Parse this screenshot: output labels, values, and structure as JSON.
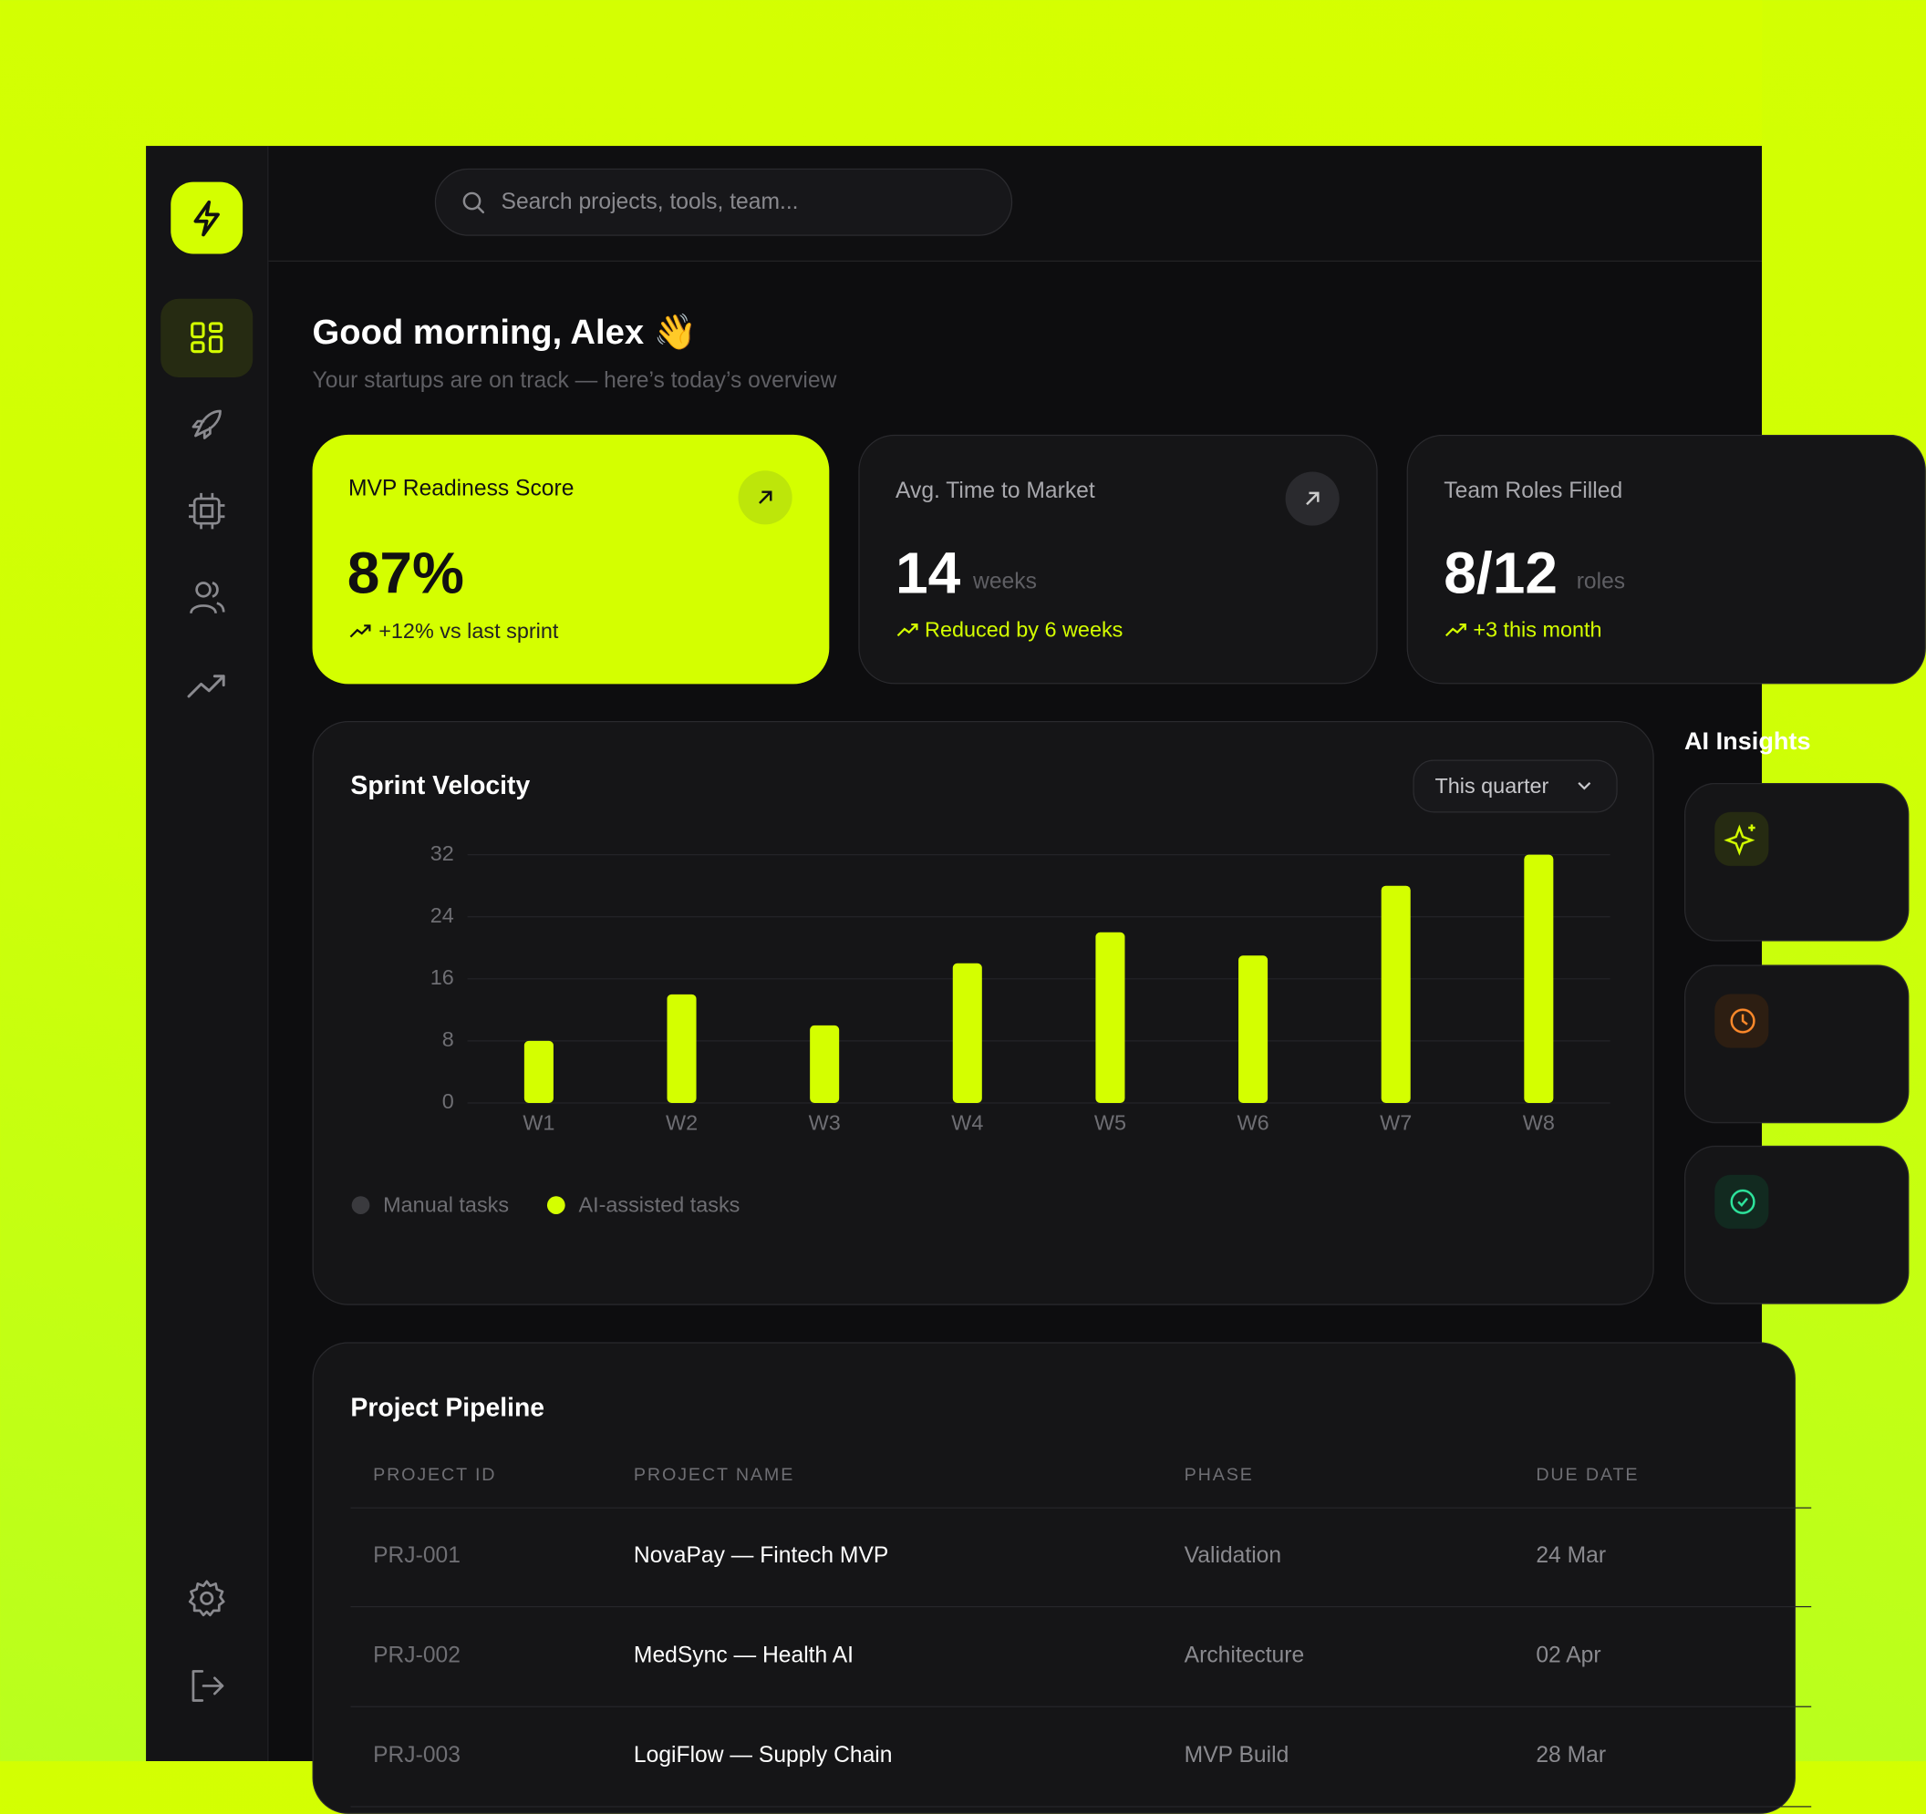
{
  "search_placeholder": "Search projects, tools, team...",
  "greeting": "Good morning, Alex 👋",
  "subtitle": "Your startups are on track — here’s today’s overview",
  "stats": [
    {
      "title": "MVP Readiness Score",
      "value": "87%",
      "change": "+12% vs last sprint"
    },
    {
      "title": "Avg. Time to Market",
      "value": "14",
      "unit": "weeks",
      "change": "Reduced by 6 weeks"
    },
    {
      "title": "Team Roles Filled",
      "value": "8/12",
      "unit": "roles",
      "change": "+3 this month"
    }
  ],
  "chart_data": {
    "type": "bar",
    "title": "Sprint Velocity",
    "filter": "This quarter",
    "categories": [
      "W1",
      "W2",
      "W3",
      "W4",
      "W5",
      "W6",
      "W7",
      "W8"
    ],
    "series": [
      {
        "name": "Manual tasks",
        "color": "#3a3a3e",
        "values": [
          null,
          null,
          null,
          null,
          null,
          null,
          null,
          null
        ]
      },
      {
        "name": "AI-assisted tasks",
        "color": "#d4ff00",
        "values": [
          8,
          14,
          10,
          18,
          22,
          19,
          28,
          32
        ]
      }
    ],
    "ylim": [
      0,
      32
    ],
    "yticks": [
      0,
      8,
      16,
      24,
      32
    ],
    "grid": true
  },
  "insights": {
    "title": "AI Insights"
  },
  "pipeline": {
    "title": "Project Pipeline",
    "columns": [
      "PROJECT ID",
      "PROJECT NAME",
      "PHASE",
      "DUE DATE"
    ],
    "rows": [
      [
        "PRJ-001",
        "NovaPay — Fintech MVP",
        "Validation",
        "24 Mar"
      ],
      [
        "PRJ-002",
        "MedSync — Health AI",
        "Architecture",
        "02 Apr"
      ],
      [
        "PRJ-003",
        "LogiFlow — Supply Chain",
        "MVP Build",
        "28 Mar"
      ]
    ]
  }
}
